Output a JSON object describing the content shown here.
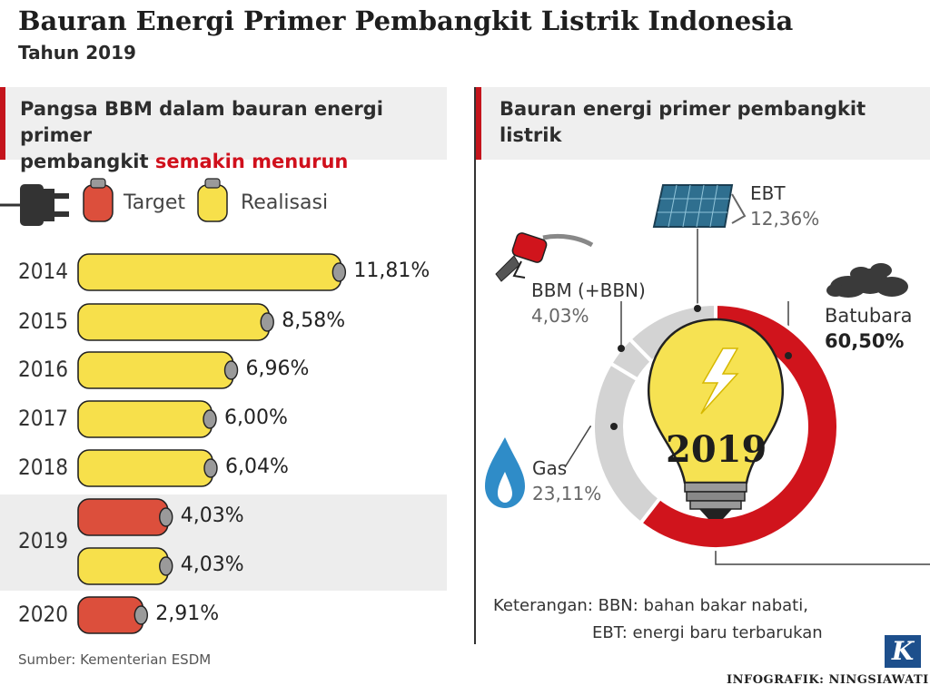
{
  "header": {
    "title": "Bauran Energi Primer Pembangkit Listrik Indonesia",
    "subtitle": "Tahun 2019"
  },
  "left_panel": {
    "heading_line1": "Pangsa BBM dalam bauran energi primer",
    "heading_line2_prefix": "pembangkit ",
    "heading_line2_highlight": "semakin menurun",
    "legend": {
      "target": "Target",
      "realisasi": "Realisasi"
    }
  },
  "right_panel": {
    "heading_line1": "Bauran energi primer pembangkit",
    "heading_line2": "listrik",
    "center_year": "2019",
    "note_line1": "Keterangan: BBN: bahan bakar nabati,",
    "note_line2": "EBT: energi baru terbarukan"
  },
  "footer": {
    "source": "Sumber: Kementerian ESDM",
    "credit": "INFOGRAFIK: NINGSIAWATI",
    "logo_letter": "K"
  },
  "colors": {
    "realisasi": "#f7e04b",
    "target": "#dc4f3c",
    "batubara": "#d0141c",
    "gray_segments": "#d3d3d3",
    "accent": "#c4141c"
  },
  "chart_data": [
    {
      "type": "bar",
      "orientation": "horizontal",
      "rows": [
        {
          "year": "2014",
          "kind": "Realisasi",
          "value": 11.81,
          "label": "11,81%"
        },
        {
          "year": "2015",
          "kind": "Realisasi",
          "value": 8.58,
          "label": "8,58%"
        },
        {
          "year": "2016",
          "kind": "Realisasi",
          "value": 6.96,
          "label": "6,96%"
        },
        {
          "year": "2017",
          "kind": "Realisasi",
          "value": 6.0,
          "label": "6,00%"
        },
        {
          "year": "2018",
          "kind": "Realisasi",
          "value": 6.04,
          "label": "6,04%"
        },
        {
          "year": "2019",
          "kind": "Target",
          "value": 4.03,
          "label": "4,03%"
        },
        {
          "year": "2019",
          "kind": "Realisasi",
          "value": 4.03,
          "label": "4,03%"
        },
        {
          "year": "2020",
          "kind": "Target",
          "value": 2.91,
          "label": "2,91%"
        }
      ]
    },
    {
      "type": "pie",
      "style": "donut",
      "slices": [
        {
          "name": "Batubara",
          "value": 60.5,
          "label": "60,50%"
        },
        {
          "name": "Gas",
          "value": 23.11,
          "label": "23,11%"
        },
        {
          "name": "BBM (+BBN)",
          "value": 4.03,
          "label": "4,03%"
        },
        {
          "name": "EBT",
          "value": 12.36,
          "label": "12,36%"
        }
      ]
    }
  ]
}
